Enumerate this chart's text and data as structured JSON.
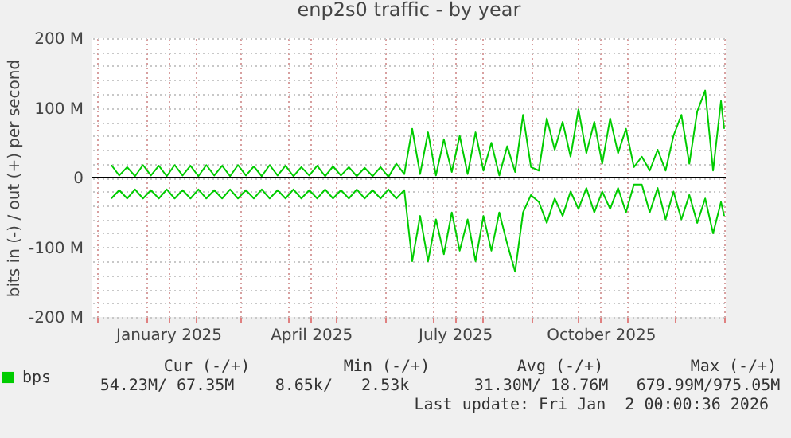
{
  "chart_data": {
    "type": "line",
    "title": "enp2s0 traffic - by year",
    "ylabel": "bits in (-) / out (+) per second",
    "x": [
      "2024-12-10",
      "2024-12-15",
      "2024-12-20",
      "2024-12-25",
      "2024-12-30",
      "2025-01-04",
      "2025-01-09",
      "2025-01-14",
      "2025-01-19",
      "2025-01-24",
      "2025-01-29",
      "2025-02-03",
      "2025-02-08",
      "2025-02-13",
      "2025-02-18",
      "2025-02-23",
      "2025-02-28",
      "2025-03-05",
      "2025-03-10",
      "2025-03-15",
      "2025-03-20",
      "2025-03-25",
      "2025-03-30",
      "2025-04-04",
      "2025-04-09",
      "2025-04-14",
      "2025-04-19",
      "2025-04-24",
      "2025-04-29",
      "2025-05-04",
      "2025-05-09",
      "2025-05-14",
      "2025-05-19",
      "2025-05-24",
      "2025-05-29",
      "2025-06-03",
      "2025-06-08",
      "2025-06-13",
      "2025-06-18",
      "2025-06-23",
      "2025-06-28",
      "2025-07-03",
      "2025-07-08",
      "2025-07-13",
      "2025-07-18",
      "2025-07-23",
      "2025-07-28",
      "2025-08-02",
      "2025-08-07",
      "2025-08-12",
      "2025-08-17",
      "2025-08-22",
      "2025-08-27",
      "2025-09-01",
      "2025-09-06",
      "2025-09-11",
      "2025-09-16",
      "2025-09-21",
      "2025-09-26",
      "2025-10-01",
      "2025-10-06",
      "2025-10-11",
      "2025-10-16",
      "2025-10-21",
      "2025-10-26",
      "2025-10-31",
      "2025-11-05",
      "2025-11-10",
      "2025-11-15",
      "2025-11-20",
      "2025-11-25",
      "2025-11-30",
      "2025-12-05",
      "2025-12-10",
      "2025-12-15",
      "2025-12-20",
      "2025-12-25",
      "2025-12-30",
      "2026-01-01"
    ],
    "series": [
      {
        "name": "bps",
        "color": "#00cc00",
        "values": [
          18,
          3,
          15,
          2,
          18,
          3,
          17,
          2,
          18,
          3,
          17,
          2,
          18,
          3,
          17,
          2,
          18,
          3,
          16,
          2,
          18,
          3,
          17,
          2,
          15,
          3,
          17,
          2,
          16,
          3,
          15,
          2,
          14,
          2,
          15,
          1,
          20,
          5,
          70,
          5,
          65,
          3,
          55,
          8,
          60,
          5,
          65,
          10,
          50,
          3,
          45,
          8,
          90,
          15,
          10,
          85,
          40,
          80,
          30,
          98,
          35,
          80,
          20,
          85,
          35,
          70,
          15,
          30,
          10,
          40,
          10,
          60,
          90,
          20,
          95,
          125,
          10,
          110,
          70
        ]
      },
      {
        "color": "#00cc00",
        "values": [
          -30,
          -18,
          -30,
          -17,
          -30,
          -18,
          -30,
          -17,
          -30,
          -18,
          -30,
          -17,
          -30,
          -18,
          -30,
          -17,
          -30,
          -18,
          -30,
          -17,
          -30,
          -18,
          -30,
          -17,
          -30,
          -18,
          -30,
          -17,
          -30,
          -18,
          -30,
          -17,
          -30,
          -18,
          -30,
          -17,
          -30,
          -18,
          -120,
          -55,
          -120,
          -60,
          -110,
          -50,
          -105,
          -60,
          -120,
          -55,
          -105,
          -50,
          -95,
          -135,
          -50,
          -25,
          -35,
          -65,
          -30,
          -55,
          -20,
          -45,
          -15,
          -50,
          -20,
          -45,
          -15,
          -50,
          -10,
          -10,
          -50,
          -15,
          -60,
          -20,
          -60,
          -25,
          -65,
          -30,
          -80,
          -35,
          -55
        ]
      }
    ],
    "xlim": [
      "2024-11-28",
      "2026-01-02"
    ],
    "xticks": [
      {
        "value": "2024-12-01",
        "label": null
      },
      {
        "value": "2025-01-01",
        "label": null
      },
      {
        "value": "2025-01-15",
        "label": "January 2025"
      },
      {
        "value": "2025-02-01",
        "label": null
      },
      {
        "value": "2025-03-01",
        "label": null
      },
      {
        "value": "2025-04-01",
        "label": null
      },
      {
        "value": "2025-04-15",
        "label": "April 2025"
      },
      {
        "value": "2025-05-01",
        "label": null
      },
      {
        "value": "2025-06-01",
        "label": null
      },
      {
        "value": "2025-07-01",
        "label": null
      },
      {
        "value": "2025-07-15",
        "label": "July 2025"
      },
      {
        "value": "2025-08-01",
        "label": null
      },
      {
        "value": "2025-09-01",
        "label": null
      },
      {
        "value": "2025-10-01",
        "label": null
      },
      {
        "value": "2025-10-15",
        "label": "October 2025"
      },
      {
        "value": "2025-11-01",
        "label": null
      },
      {
        "value": "2025-12-01",
        "label": null
      },
      {
        "value": "2026-01-01",
        "label": null
      }
    ],
    "ylim": [
      -200,
      200
    ],
    "yticks": [
      {
        "value": -200,
        "label": "-200 M"
      },
      {
        "value": -180,
        "label": null
      },
      {
        "value": -160,
        "label": null
      },
      {
        "value": -140,
        "label": null
      },
      {
        "value": -120,
        "label": null
      },
      {
        "value": -100,
        "label": "-100 M"
      },
      {
        "value": -80,
        "label": null
      },
      {
        "value": -60,
        "label": null
      },
      {
        "value": -40,
        "label": null
      },
      {
        "value": -20,
        "label": null
      },
      {
        "value": 0,
        "label": "0"
      },
      {
        "value": 20,
        "label": null
      },
      {
        "value": 40,
        "label": null
      },
      {
        "value": 60,
        "label": null
      },
      {
        "value": 80,
        "label": null
      },
      {
        "value": 100,
        "label": "100 M"
      },
      {
        "value": 120,
        "label": null
      },
      {
        "value": 140,
        "label": null
      },
      {
        "value": 160,
        "label": null
      },
      {
        "value": 180,
        "label": null
      },
      {
        "value": 200,
        "label": "200 M"
      }
    ],
    "grid": true,
    "legend": "bottom left",
    "ref_lines": [
      {
        "axis": "y",
        "value": 0,
        "color": "#000000"
      }
    ],
    "annotations": [
      "Cur (-/+)",
      "Min (-/+)",
      "Avg (-/+)",
      "Max (-/+)",
      "54.23M/ 67.35M",
      "8.65k/   2.53k",
      "31.30M/ 18.76M",
      "679.99M/975.05M",
      "Last update: Fri Jan  2 00:00:36 2026"
    ]
  }
}
